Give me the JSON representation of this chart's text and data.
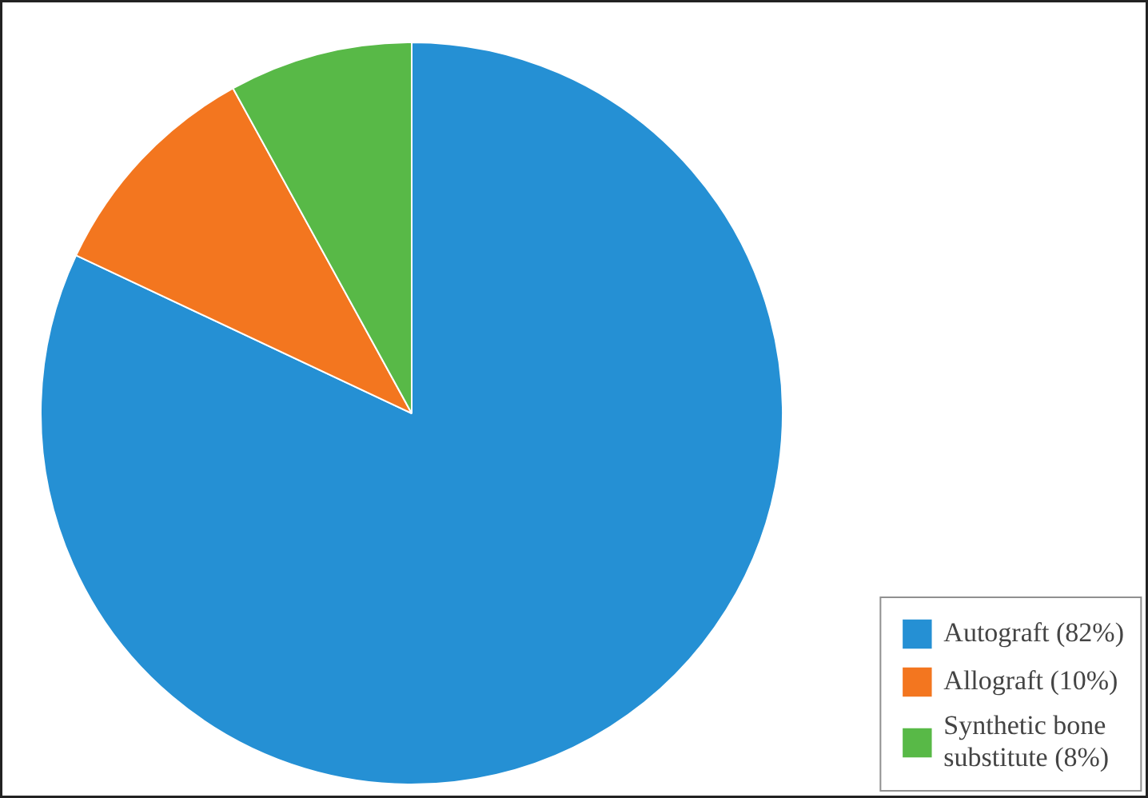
{
  "chart_data": {
    "type": "pie",
    "categories": [
      "Autograft (82%)",
      "Allograft (10%)",
      "Synthetic bone substitute (8%)"
    ],
    "values": [
      82,
      10,
      8
    ],
    "colors": [
      "#2590d4",
      "#f3761f",
      "#58b947"
    ],
    "legend": "bottom right"
  }
}
